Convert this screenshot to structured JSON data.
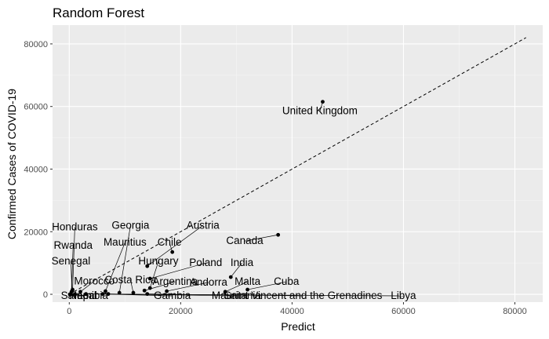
{
  "chart_data": {
    "type": "scatter",
    "title": "Random Forest",
    "xlabel": "Predict",
    "ylabel": "Confirmed Cases of COVID-19",
    "xlim": [
      -3000,
      85000
    ],
    "ylim": [
      -2500,
      86000
    ],
    "x_ticks": [
      0,
      20000,
      40000,
      60000,
      80000
    ],
    "y_ticks": [
      0,
      20000,
      40000,
      60000,
      80000
    ],
    "x_tick_labels": [
      "0",
      "20000",
      "40000",
      "60000",
      "80000"
    ],
    "y_tick_labels": [
      "0",
      "20000",
      "40000",
      "60000",
      "80000"
    ],
    "reference_line": {
      "style": "dashed",
      "from": [
        0,
        0
      ],
      "to": [
        82000,
        82000
      ]
    },
    "grid": true,
    "colors": {
      "panel_background": "#ebebeb",
      "major_grid": "#ffffff",
      "minor_grid": "#f5f5f5",
      "point": "#000000",
      "label": "#000000",
      "tick_text": "#4d4d4d"
    },
    "points": [
      {
        "label": "United Kingdom",
        "x": 45500,
        "y": 61500,
        "lx": 45000,
        "ly": 57500
      },
      {
        "label": "Canada",
        "x": 37500,
        "y": 19000,
        "lx": 31500,
        "ly": 16000
      },
      {
        "label": "India",
        "x": 29000,
        "y": 5500,
        "lx": 31000,
        "ly": 9000
      },
      {
        "label": "Cuba",
        "x": 32000,
        "y": 1500,
        "lx": 39000,
        "ly": 3000
      },
      {
        "label": "Malta",
        "x": 28000,
        "y": 800,
        "lx": 32000,
        "ly": 3000
      },
      {
        "label": "Andorra",
        "x": 17500,
        "y": 1000,
        "lx": 25000,
        "ly": 2800
      },
      {
        "label": "Poland",
        "x": 14500,
        "y": 5000,
        "lx": 24500,
        "ly": 9000
      },
      {
        "label": "Hungary",
        "x": 14500,
        "y": 2000,
        "lx": 16000,
        "ly": 9500
      },
      {
        "label": "Chile",
        "x": 18500,
        "y": 13500,
        "lx": 18000,
        "ly": 15500
      },
      {
        "label": "Austria",
        "x": 14000,
        "y": 9000,
        "lx": 24000,
        "ly": 21000
      },
      {
        "label": "Georgia",
        "x": 9000,
        "y": 500,
        "lx": 11000,
        "ly": 21000
      },
      {
        "label": "Mauritius",
        "x": 6500,
        "y": 1000,
        "lx": 10000,
        "ly": 15500
      },
      {
        "label": "Honduras",
        "x": 600,
        "y": 1500,
        "lx": 1000,
        "ly": 20500
      },
      {
        "label": "Rwanda",
        "x": 400,
        "y": 800,
        "lx": 700,
        "ly": 14500
      },
      {
        "label": "Senegal",
        "x": 500,
        "y": 1000,
        "lx": 300,
        "ly": 9500
      },
      {
        "label": "Costa Rica",
        "x": 11500,
        "y": 500,
        "lx": 11000,
        "ly": 3500
      },
      {
        "label": "Argentina",
        "x": 13500,
        "y": 1200,
        "lx": 19000,
        "ly": 3000
      },
      {
        "label": "Morocco",
        "x": 2000,
        "y": 800,
        "lx": 4500,
        "ly": 3200
      },
      {
        "label": "Gambia",
        "x": 6000,
        "y": 100,
        "lx": 18500,
        "ly": -1500
      },
      {
        "label": "Mauritania",
        "x": 7000,
        "y": 100,
        "lx": 30000,
        "ly": -1500
      },
      {
        "label": "Saint Vincent and the Grenadines",
        "x": 14000,
        "y": 100,
        "lx": 42000,
        "ly": -1500
      },
      {
        "label": "Libya",
        "x": 3000,
        "y": 100,
        "lx": 60000,
        "ly": -1500
      },
      {
        "label": "Samoa",
        "x": 100,
        "y": 0,
        "lx": 1500,
        "ly": -1500
      },
      {
        "label": "Namibia",
        "x": 300,
        "y": 10,
        "lx": 3500,
        "ly": -1500
      },
      {
        "label": "Nepal",
        "x": 1000,
        "y": 50,
        "lx": 2500,
        "ly": -1500
      }
    ]
  }
}
